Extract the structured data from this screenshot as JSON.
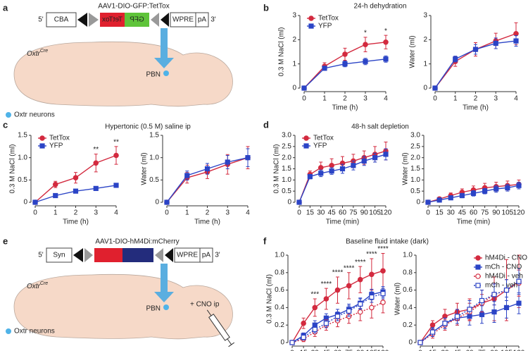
{
  "panel_labels": [
    "a",
    "b",
    "c",
    "d",
    "e",
    "f"
  ],
  "diagrams": [
    {
      "title": "AAV1-DIO-GFP:TetTox",
      "construct": {
        "five_prime": "5'",
        "promoter": "CBA",
        "inverted_gene_1": "TetTox",
        "inverted_gene_2": "GFP",
        "wpre": "WPRE",
        "polya": "pA",
        "three_prime": "3'"
      },
      "genotype": "Oxtr",
      "genotype_superscript": "Cre",
      "target": "PBN",
      "legend": "Oxtr neurons"
    },
    {
      "title": "AAV1-DIO-hM4Di:mCherry",
      "construct": {
        "five_prime": "5'",
        "promoter": "Syn",
        "wpre": "WPRE",
        "polya": "pA",
        "three_prime": "3'"
      },
      "genotype": "Oxtr",
      "genotype_superscript": "Cre",
      "target": "PBN",
      "legend": "Oxtr neurons",
      "injection": "+ CNO ip"
    }
  ],
  "chart_data": [
    {
      "type": "line",
      "title": "24-h dehydration",
      "xlabel": "Time (h)",
      "ylabel": "0.3 M NaCl (ml)",
      "x": [
        0,
        1,
        2,
        3,
        4
      ],
      "xlim": [
        0,
        4
      ],
      "xticks": [
        0,
        1,
        2,
        3,
        4
      ],
      "ylim": [
        0,
        3
      ],
      "yticks": [
        0,
        1,
        2,
        3
      ],
      "legend": "upper left",
      "series": [
        {
          "name": "TetTox",
          "color": "#d32a3f",
          "marker": "circle",
          "filled": true,
          "line_style": "solid",
          "values": [
            0,
            0.9,
            1.4,
            1.8,
            1.9
          ],
          "errors": [
            0,
            0.15,
            0.25,
            0.3,
            0.28
          ]
        },
        {
          "name": "YFP",
          "color": "#2b44c6",
          "marker": "square",
          "filled": true,
          "line_style": "solid",
          "values": [
            0,
            0.82,
            1.0,
            1.1,
            1.2
          ],
          "errors": [
            0,
            0.08,
            0.12,
            0.13,
            0.13
          ]
        }
      ],
      "annotations": [
        {
          "x": 3,
          "text": "*"
        },
        {
          "x": 4,
          "text": "*"
        }
      ]
    },
    {
      "type": "line",
      "xlabel": "Time (h)",
      "ylabel": "Water (ml)",
      "x": [
        0,
        1,
        2,
        3,
        4
      ],
      "xlim": [
        0,
        4
      ],
      "xticks": [
        0,
        1,
        2,
        3,
        4
      ],
      "ylim": [
        0,
        3
      ],
      "yticks": [
        0,
        1,
        2,
        3
      ],
      "series": [
        {
          "color": "#d32a3f",
          "marker": "circle",
          "filled": true,
          "line_style": "solid",
          "values": [
            0,
            1.1,
            1.6,
            1.95,
            2.25
          ],
          "errors": [
            0,
            0.2,
            0.28,
            0.32,
            0.45
          ]
        },
        {
          "color": "#2b44c6",
          "marker": "square",
          "filled": true,
          "line_style": "solid",
          "values": [
            0,
            1.2,
            1.6,
            1.85,
            1.95
          ],
          "errors": [
            0,
            0.12,
            0.2,
            0.22,
            0.22
          ]
        }
      ]
    },
    {
      "type": "line",
      "title": "Hypertonic (0.5 M) saline ip",
      "xlabel": "Time (h)",
      "ylabel": "0.3 M NaCl (ml)",
      "x": [
        0,
        1,
        2,
        3,
        4
      ],
      "xlim": [
        0,
        4
      ],
      "xticks": [
        0,
        1,
        2,
        3,
        4
      ],
      "ylim": [
        0,
        1.5
      ],
      "yticks": [
        0,
        0.5,
        {
          "value": 1,
          "label": "1.0"
        },
        1.5
      ],
      "legend": "upper left",
      "series": [
        {
          "name": "TetTox",
          "color": "#d32a3f",
          "marker": "circle",
          "filled": true,
          "line_style": "solid",
          "values": [
            0,
            0.4,
            0.55,
            0.88,
            1.05
          ],
          "errors": [
            0,
            0.07,
            0.12,
            0.2,
            0.2
          ]
        },
        {
          "name": "YFP",
          "color": "#2b44c6",
          "marker": "square",
          "filled": true,
          "line_style": "solid",
          "values": [
            0,
            0.15,
            0.25,
            0.31,
            0.38
          ],
          "errors": [
            0,
            0.03,
            0.03,
            0.04,
            0.04
          ]
        }
      ],
      "annotations": [
        {
          "x": 3,
          "text": "**"
        },
        {
          "x": 4,
          "text": "**"
        }
      ]
    },
    {
      "type": "line",
      "xlabel": "Time (h)",
      "ylabel": "Water (ml)",
      "x": [
        0,
        1,
        2,
        3,
        4
      ],
      "xlim": [
        0,
        4
      ],
      "xticks": [
        0,
        1,
        2,
        3,
        4
      ],
      "ylim": [
        0,
        1.5
      ],
      "yticks": [
        0,
        0.5,
        {
          "value": 1,
          "label": "1.0"
        },
        1.5
      ],
      "series": [
        {
          "color": "#d32a3f",
          "marker": "circle",
          "filled": true,
          "line_style": "solid",
          "values": [
            0,
            0.55,
            0.68,
            0.85,
            1.0
          ],
          "errors": [
            0,
            0.12,
            0.15,
            0.22,
            0.25
          ]
        },
        {
          "color": "#2b44c6",
          "marker": "square",
          "filled": true,
          "line_style": "solid",
          "values": [
            0,
            0.6,
            0.75,
            0.9,
            1.0
          ],
          "errors": [
            0,
            0.1,
            0.12,
            0.15,
            0.2
          ]
        }
      ]
    },
    {
      "type": "line",
      "title": "48-h salt depletion",
      "xlabel": "Time (min)",
      "ylabel": "0.3 M NaCl (ml)",
      "x": [
        0,
        15,
        30,
        45,
        60,
        75,
        90,
        105,
        120
      ],
      "xlim": [
        0,
        120
      ],
      "xticks": [
        0,
        15,
        30,
        45,
        60,
        75,
        90,
        105,
        120
      ],
      "ylim": [
        0,
        3
      ],
      "yticks": [
        0,
        0.5,
        {
          "value": 1,
          "label": "1.0"
        },
        1.5,
        {
          "value": 2,
          "label": "2.0"
        },
        2.5,
        {
          "value": 3,
          "label": "3.0"
        }
      ],
      "legend": "upper left",
      "series": [
        {
          "name": "TetTox",
          "color": "#d32a3f",
          "marker": "circle",
          "filled": true,
          "line_style": "solid",
          "values": [
            0,
            1.25,
            1.55,
            1.65,
            1.75,
            1.85,
            2.0,
            2.15,
            2.3
          ],
          "errors": [
            0,
            0.15,
            0.25,
            0.3,
            0.3,
            0.3,
            0.3,
            0.35,
            0.4
          ]
        },
        {
          "name": "YFP",
          "color": "#2b44c6",
          "marker": "square",
          "filled": true,
          "line_style": "solid",
          "values": [
            0,
            1.15,
            1.3,
            1.4,
            1.5,
            1.65,
            1.85,
            2.0,
            2.15
          ],
          "errors": [
            0,
            0.1,
            0.15,
            0.15,
            0.2,
            0.2,
            0.2,
            0.2,
            0.25
          ]
        }
      ]
    },
    {
      "type": "line",
      "xlabel": "Time (min)",
      "ylabel": "Water (ml)",
      "x": [
        0,
        15,
        30,
        45,
        60,
        75,
        90,
        105,
        120
      ],
      "xlim": [
        0,
        120
      ],
      "xticks": [
        0,
        15,
        30,
        45,
        60,
        75,
        90,
        105,
        120
      ],
      "ylim": [
        0,
        3
      ],
      "yticks": [
        0,
        0.5,
        {
          "value": 1,
          "label": "1.0"
        },
        1.5,
        {
          "value": 2,
          "label": "2.0"
        },
        2.5,
        {
          "value": 3,
          "label": "3.0"
        }
      ],
      "series": [
        {
          "color": "#d32a3f",
          "marker": "circle",
          "filled": true,
          "line_style": "solid",
          "values": [
            0,
            0.15,
            0.3,
            0.45,
            0.55,
            0.65,
            0.7,
            0.75,
            0.8
          ],
          "errors": [
            0,
            0.08,
            0.12,
            0.15,
            0.18,
            0.2,
            0.2,
            0.2,
            0.2
          ]
        },
        {
          "color": "#2b44c6",
          "marker": "square",
          "filled": true,
          "line_style": "solid",
          "values": [
            0,
            0.1,
            0.2,
            0.3,
            0.4,
            0.5,
            0.6,
            0.65,
            0.75
          ],
          "errors": [
            0,
            0.05,
            0.08,
            0.1,
            0.12,
            0.12,
            0.15,
            0.15,
            0.15
          ]
        }
      ]
    },
    {
      "type": "line",
      "title": "Baseline fluid intake (dark)",
      "xlabel": "Time (min)",
      "ylabel": "0.3 M NaCl (ml)",
      "x": [
        0,
        15,
        30,
        45,
        60,
        75,
        90,
        105,
        120
      ],
      "xlim": [
        0,
        120
      ],
      "xticks": [
        0,
        15,
        30,
        45,
        60,
        75,
        90,
        105,
        120
      ],
      "ylim": [
        0,
        1
      ],
      "yticks": [
        0,
        0.2,
        0.4,
        0.6,
        0.8,
        {
          "value": 1,
          "label": "1.0"
        }
      ],
      "series": [
        {
          "color": "#d32a3f",
          "marker": "circle",
          "filled": true,
          "line_style": "solid",
          "values": [
            0,
            0.22,
            0.4,
            0.5,
            0.6,
            0.65,
            0.72,
            0.78,
            0.82
          ],
          "errors": [
            0,
            0.06,
            0.1,
            0.12,
            0.15,
            0.15,
            0.15,
            0.18,
            0.2
          ]
        },
        {
          "color": "#2b44c6",
          "marker": "square",
          "filled": true,
          "line_style": "solid",
          "values": [
            0,
            0.08,
            0.2,
            0.28,
            0.32,
            0.38,
            0.45,
            0.55,
            0.58
          ],
          "errors": [
            0,
            0.03,
            0.05,
            0.05,
            0.06,
            0.06,
            0.06,
            0.06,
            0.06
          ]
        },
        {
          "color": "#d32a3f",
          "marker": "circle",
          "filled": false,
          "line_style": "dotted",
          "values": [
            0,
            0.04,
            0.12,
            0.2,
            0.25,
            0.3,
            0.35,
            0.4,
            0.46
          ],
          "errors": [
            0,
            0.03,
            0.05,
            0.06,
            0.07,
            0.08,
            0.1,
            0.12,
            0.12
          ]
        },
        {
          "color": "#2b44c6",
          "marker": "square",
          "filled": false,
          "line_style": "dotted",
          "values": [
            0,
            0.06,
            0.15,
            0.22,
            0.3,
            0.36,
            0.44,
            0.52,
            0.56
          ],
          "errors": [
            0,
            0.03,
            0.04,
            0.05,
            0.05,
            0.06,
            0.06,
            0.06,
            0.06
          ]
        }
      ],
      "annotations": [
        {
          "x": 30,
          "text": "***"
        },
        {
          "x": 45,
          "text": "****"
        },
        {
          "x": 60,
          "text": "****"
        },
        {
          "x": 75,
          "text": "****"
        },
        {
          "x": 90,
          "text": "****"
        },
        {
          "x": 105,
          "text": "****"
        },
        {
          "x": 120,
          "text": "****"
        }
      ]
    },
    {
      "type": "line",
      "xlabel": "Time (min)",
      "ylabel": "Water (ml)",
      "x": [
        0,
        15,
        30,
        45,
        60,
        75,
        90,
        105,
        120
      ],
      "xlim": [
        0,
        120
      ],
      "xticks": [
        0,
        15,
        30,
        45,
        60,
        75,
        90,
        105,
        120
      ],
      "ylim": [
        0,
        1
      ],
      "yticks": [
        0,
        0.2,
        0.4,
        0.6,
        0.8,
        {
          "value": 1,
          "label": "1.0"
        }
      ],
      "legend": "upper right",
      "series": [
        {
          "name": "hM4Di - CNO",
          "color": "#d32a3f",
          "marker": "circle",
          "filled": true,
          "line_style": "solid",
          "values": [
            0,
            0.2,
            0.3,
            0.35,
            0.38,
            0.45,
            0.5,
            0.6,
            0.7
          ],
          "errors": [
            0,
            0.05,
            0.08,
            0.1,
            0.12,
            0.15,
            0.25,
            0.35,
            0.3
          ]
        },
        {
          "name": "mCh - CNO",
          "color": "#2b44c6",
          "marker": "square",
          "filled": true,
          "line_style": "solid",
          "values": [
            0,
            0.12,
            0.22,
            0.28,
            0.3,
            0.32,
            0.35,
            0.4,
            0.45
          ],
          "errors": [
            0,
            0.04,
            0.06,
            0.08,
            0.1,
            0.1,
            0.12,
            0.12,
            0.12
          ]
        },
        {
          "name": "hM4Di - veh",
          "color": "#d32a3f",
          "marker": "circle",
          "filled": false,
          "line_style": "dotted",
          "values": [
            0,
            0.1,
            0.2,
            0.28,
            0.35,
            0.45,
            0.55,
            0.6,
            0.68
          ],
          "errors": [
            0,
            0.05,
            0.06,
            0.08,
            0.1,
            0.1,
            0.12,
            0.12,
            0.15
          ]
        },
        {
          "name": "mCh - veh",
          "color": "#2b44c6",
          "marker": "square",
          "filled": false,
          "line_style": "dotted",
          "values": [
            0,
            0.12,
            0.22,
            0.3,
            0.38,
            0.48,
            0.55,
            0.6,
            0.7
          ],
          "errors": [
            0,
            0.05,
            0.06,
            0.08,
            0.1,
            0.12,
            0.12,
            0.12,
            0.15
          ]
        }
      ]
    }
  ]
}
